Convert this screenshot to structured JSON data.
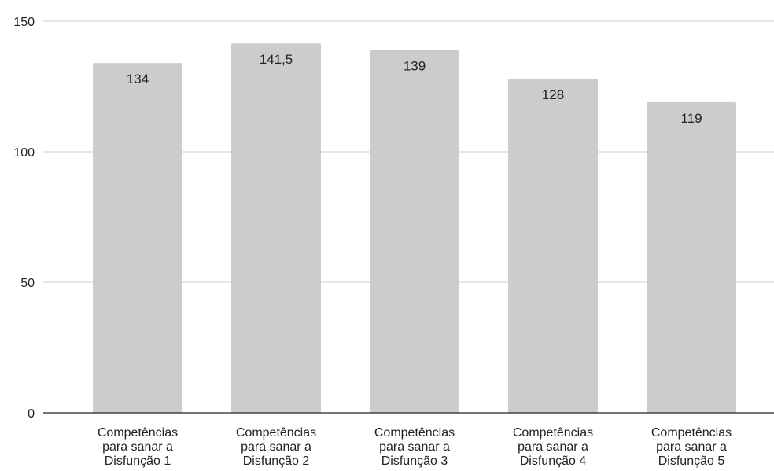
{
  "chart_data": {
    "type": "bar",
    "categories": [
      "Competências para sanar a Disfunção 1",
      "Competências para sanar a Disfunção 2",
      "Competências para sanar a Disfunção 3",
      "Competências para sanar a Disfunção 4",
      "Competências para sanar a Disfunção 5"
    ],
    "category_label_lines": [
      [
        "Competências",
        "para sanar a",
        "Disfunção 1"
      ],
      [
        "Competências",
        "para sanar a",
        "Disfunção 2"
      ],
      [
        "Competências",
        "para sanar a",
        "Disfunção 3"
      ],
      [
        "Competências",
        "para sanar a",
        "Disfunção 4"
      ],
      [
        "Competências",
        "para sanar a",
        "Disfunção 5"
      ]
    ],
    "values": [
      134,
      141.5,
      139,
      128,
      119
    ],
    "data_labels": [
      "134",
      "141,5",
      "139",
      "128",
      "119"
    ],
    "yticks": [
      0,
      50,
      100,
      150
    ],
    "ytick_labels": [
      "0",
      "50",
      "100",
      "150"
    ],
    "ylim": [
      0,
      150
    ],
    "title": "",
    "xlabel": "",
    "ylabel": "",
    "grid": true,
    "legend": "none",
    "bar_color": "#cccccc",
    "grid_color": "#cccccc",
    "axis_color": "#222222"
  }
}
